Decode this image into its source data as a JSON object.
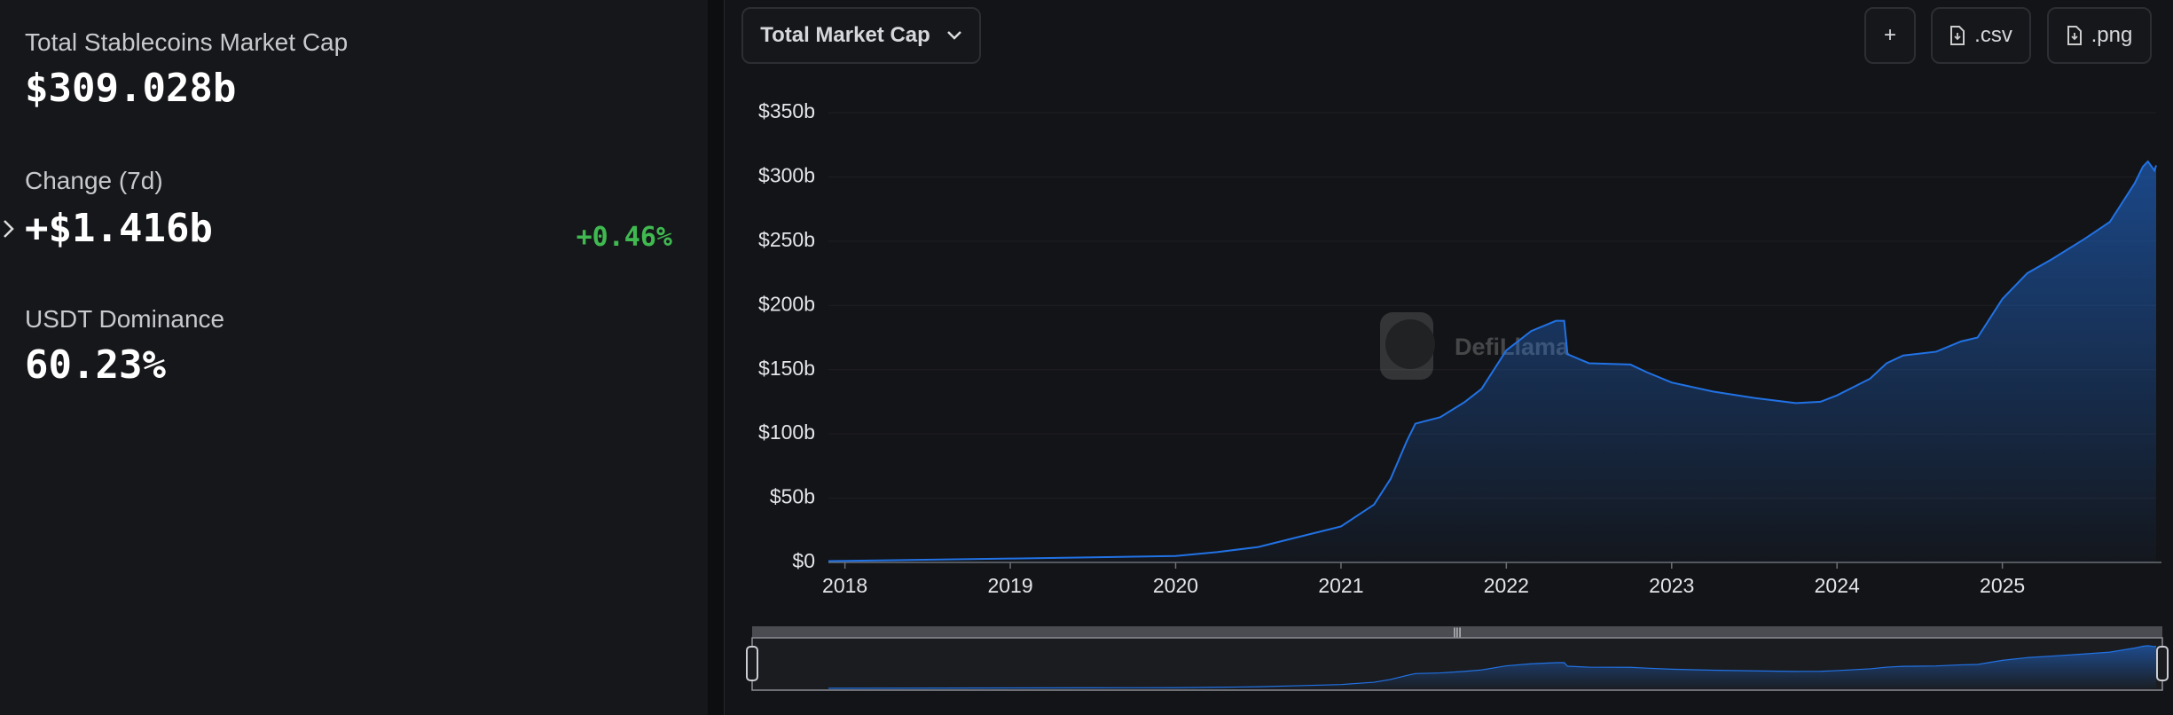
{
  "summary": {
    "stats": [
      {
        "label": "Total Stablecoins Market Cap",
        "value": "$309.028b"
      },
      {
        "label": "Change (7d)",
        "value": "+$1.416b",
        "change": "+0.46%"
      },
      {
        "label": "USDT Dominance",
        "value": "60.23%"
      }
    ]
  },
  "toolbar": {
    "dropdown": "Total Market Cap",
    "buttons": [
      "+",
      ".csv",
      ".png"
    ]
  },
  "chart_data": {
    "type": "area",
    "watermark": "DefiLlama",
    "x": [
      2017.9,
      2019.0,
      2019.5,
      2020.0,
      2020.25,
      2020.5,
      2020.75,
      2021.0,
      2021.2,
      2021.3,
      2021.4,
      2021.45,
      2021.6,
      2021.75,
      2021.85,
      2022.0,
      2022.15,
      2022.3,
      2022.35,
      2022.37,
      2022.5,
      2022.75,
      2022.85,
      2023.0,
      2023.25,
      2023.5,
      2023.75,
      2023.9,
      2024.0,
      2024.2,
      2024.3,
      2024.4,
      2024.6,
      2024.75,
      2024.85,
      2025.0,
      2025.15,
      2025.3,
      2025.5,
      2025.65,
      2025.8,
      2025.85,
      2025.88,
      2025.92,
      2025.93
    ],
    "series": [
      {
        "color": "#2172e5",
        "values": [
          1,
          3,
          4,
          5,
          8,
          12,
          20,
          28,
          45,
          65,
          95,
          108,
          113,
          125,
          135,
          165,
          180,
          188,
          188,
          162,
          155,
          154,
          148,
          140,
          133,
          128,
          124,
          125,
          130,
          143,
          155,
          161,
          164,
          172,
          175,
          205,
          225,
          236,
          252,
          265,
          295,
          308,
          312,
          305,
          309
        ]
      }
    ],
    "xlim": [
      2017.9,
      2025.93
    ],
    "xticks": [
      2018,
      2019,
      2020,
      2021,
      2022,
      2023,
      2024,
      2025
    ],
    "ylim": [
      0,
      350
    ],
    "yticks": [
      {
        "value": 0,
        "label": "$0"
      },
      {
        "value": 50,
        "label": "$50b"
      },
      {
        "value": 100,
        "label": "$100b"
      },
      {
        "value": 150,
        "label": "$150b"
      },
      {
        "value": 200,
        "label": "$200b"
      },
      {
        "value": 250,
        "label": "$250b"
      },
      {
        "value": 300,
        "label": "$300b"
      },
      {
        "value": 350,
        "label": "$350b"
      }
    ],
    "grid": true
  }
}
